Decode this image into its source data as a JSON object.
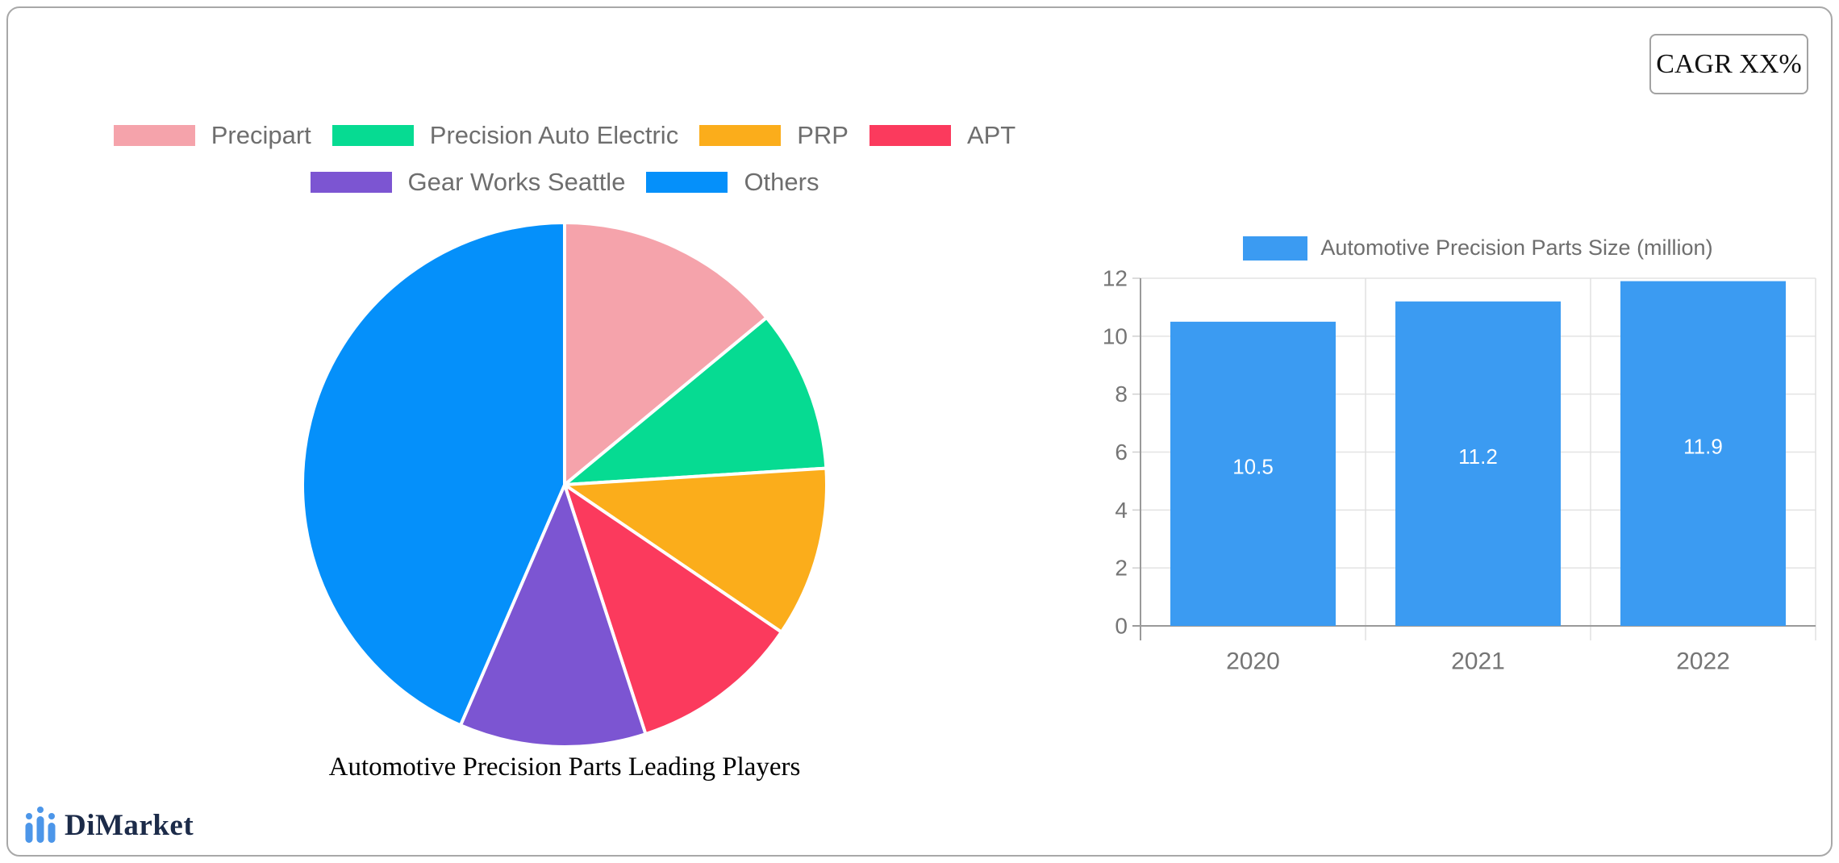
{
  "badge": {
    "label": "CAGR XX%"
  },
  "logo": {
    "text": "DiMarket"
  },
  "chart_data": [
    {
      "type": "pie",
      "title": "Automotive Precision Parts Leading Players",
      "labels": [
        "Precipart",
        "Precision Auto Electric",
        "PRP",
        "APT",
        "Gear Works Seattle",
        "Others"
      ],
      "values": [
        14,
        10,
        10.5,
        10.5,
        11.5,
        43.5
      ],
      "colors": [
        "#F5A3AB",
        "#06DB92",
        "#FBAD1B",
        "#FB3A5D",
        "#7C55D2",
        "#0590FA"
      ],
      "start_angle": 0,
      "direction": "clockwise",
      "legend_position": "top",
      "legend_rows": [
        [
          0,
          1,
          2,
          3
        ],
        [
          4,
          5
        ]
      ]
    },
    {
      "type": "bar",
      "categories": [
        "2020",
        "2021",
        "2022"
      ],
      "series": [
        {
          "name": "Automotive Precision Parts Size (million)",
          "values": [
            10.5,
            11.2,
            11.9
          ]
        }
      ],
      "value_labels": [
        "10.5",
        "11.2",
        "11.9"
      ],
      "bar_color": "#3B9BF2",
      "ylim": [
        0,
        12
      ],
      "yticks": [
        0,
        2,
        4,
        6,
        8,
        10,
        12
      ],
      "grid": true,
      "legend_position": "top"
    }
  ]
}
